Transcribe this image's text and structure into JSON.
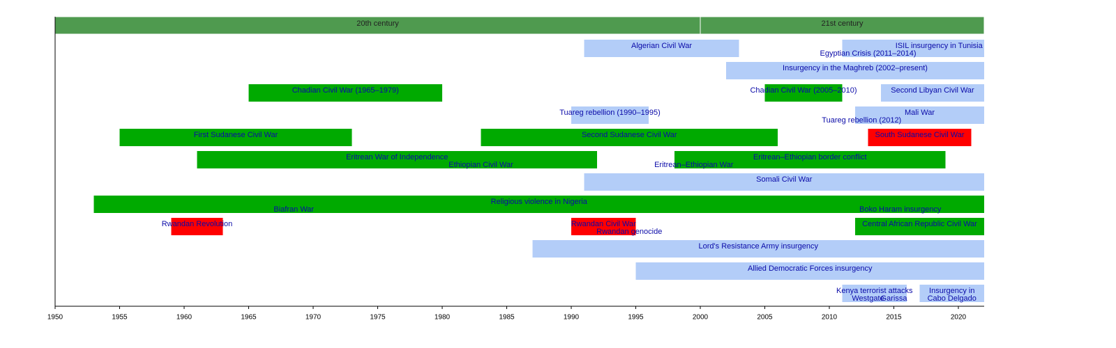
{
  "chart_data": {
    "type": "timeline",
    "xlim": [
      1950,
      2022
    ],
    "xticks": [
      1950,
      1955,
      1960,
      1965,
      1970,
      1975,
      1980,
      1985,
      1990,
      1995,
      2000,
      2005,
      2010,
      2015,
      2020
    ],
    "eras": [
      {
        "label": "20th century",
        "start": 1950,
        "end": 2000,
        "color": "#4f9a4f"
      },
      {
        "label": "21st century",
        "start": 2000,
        "end": 2022,
        "color": "#4f9a4f"
      }
    ],
    "bars": [
      {
        "label": "Algerian Civil War",
        "start": 1991,
        "end": 2003,
        "row": 0,
        "line": 0,
        "color": "#b3cdf8"
      },
      {
        "label": "Egyptian Crisis (2011–2014)",
        "start": 2011,
        "end": 2015,
        "row": 0,
        "line": 1,
        "color": "#b3cdf8"
      },
      {
        "label": "ISIL insurgency in Tunisia",
        "start": 2015,
        "end": 2022,
        "row": 0,
        "line": 0,
        "color": "#b3cdf8"
      },
      {
        "label": "Insurgency in the Maghreb (2002–present)",
        "start": 2002,
        "end": 2022,
        "row": 1,
        "line": 0,
        "color": "#b3cdf8"
      },
      {
        "label": "Chadian Civil War (1965–1979)",
        "start": 1965,
        "end": 1980,
        "row": 2,
        "line": 0,
        "color": "#00aa00"
      },
      {
        "label": "Chadian Civil War (2005–2010)",
        "start": 2005,
        "end": 2011,
        "row": 2,
        "line": 0,
        "color": "#00aa00"
      },
      {
        "label": "Second Libyan Civil War",
        "start": 2014,
        "end": 2022,
        "row": 2,
        "line": 0,
        "color": "#b3cdf8"
      },
      {
        "label": "Tuareg rebellion (1990–1995)",
        "start": 1990,
        "end": 1996,
        "row": 3,
        "line": 0,
        "color": "#b3cdf8"
      },
      {
        "label": "Mali War",
        "start": 2012,
        "end": 2022,
        "row": 3,
        "line": 0,
        "color": "#b3cdf8"
      },
      {
        "label": "Tuareg rebellion (2012)",
        "start": 2012,
        "end": 2013,
        "row": 3,
        "line": 1,
        "color": "#b3cdf8"
      },
      {
        "label": "First Sudanese Civil War",
        "start": 1955,
        "end": 1973,
        "row": 4,
        "line": 0,
        "color": "#00aa00"
      },
      {
        "label": "Second Sudanese Civil War",
        "start": 1983,
        "end": 2006,
        "row": 4,
        "line": 0,
        "color": "#00aa00"
      },
      {
        "label": "South Sudanese Civil War",
        "start": 2013,
        "end": 2021,
        "row": 4,
        "line": 0,
        "color": "#ff0000"
      },
      {
        "label": "Eritrean War of Independence",
        "start": 1961,
        "end": 1992,
        "row": 5,
        "line": 0,
        "color": "#00aa00"
      },
      {
        "label": "Ethiopian Civil War",
        "start": 1974,
        "end": 1992,
        "row": 5,
        "line": 1,
        "color": "#00aa00"
      },
      {
        "label": "Eritrean–Ethiopian border conflict",
        "start": 1998,
        "end": 2019,
        "row": 5,
        "line": 0,
        "color": "#00aa00"
      },
      {
        "label": "Eritrean–Ethiopian War",
        "start": 1998,
        "end": 2001,
        "row": 5,
        "line": 1,
        "color": "#00aa00"
      },
      {
        "label": "Somali Civil War",
        "start": 1991,
        "end": 2022,
        "row": 6,
        "line": 0,
        "color": "#b3cdf8"
      },
      {
        "label": "Religious violence in Nigeria",
        "start": 1953,
        "end": 2022,
        "row": 7,
        "line": 0,
        "color": "#00aa00"
      },
      {
        "label": "Biafran War",
        "start": 1967,
        "end": 1970,
        "row": 7,
        "line": 1,
        "color": "#00aa00"
      },
      {
        "label": "Boko Haram insurgency",
        "start": 2009,
        "end": 2022,
        "row": 7,
        "line": 1,
        "color": "#00aa00"
      },
      {
        "label": "Rwandan Revolution",
        "start": 1959,
        "end": 1963,
        "row": 8,
        "line": 0,
        "color": "#ff0000"
      },
      {
        "label": "Rwandan Civil War",
        "start": 1990,
        "end": 1995,
        "row": 8,
        "line": 0,
        "color": "#ff0000"
      },
      {
        "label": "Rwandan genocide",
        "start": 1994,
        "end": 1995,
        "row": 8,
        "line": 1,
        "color": "#ff0000"
      },
      {
        "label": "Central African Republic Civil War",
        "start": 2012,
        "end": 2022,
        "row": 8,
        "line": 0,
        "color": "#00aa00"
      },
      {
        "label": "Lord's Resistance Army insurgency",
        "start": 1987,
        "end": 2022,
        "row": 9,
        "line": 0,
        "color": "#b3cdf8"
      },
      {
        "label": "Allied Democratic Forces insurgency",
        "start": 1995,
        "end": 2022,
        "row": 10,
        "line": 0,
        "color": "#b3cdf8"
      },
      {
        "label": "Kenya terrorist attacks",
        "start": 2011,
        "end": 2016,
        "row": 11,
        "line": 0,
        "color": "#b3cdf8"
      },
      {
        "label": "Westgate",
        "start": 2013,
        "end": 2013,
        "row": 11,
        "line": 1,
        "color": "#b3cdf8"
      },
      {
        "label": "Garissa",
        "start": 2015,
        "end": 2015,
        "row": 11,
        "line": 1,
        "color": "#b3cdf8"
      },
      {
        "label": [
          "Insurgency in",
          "Cabo Delgado"
        ],
        "start": 2017,
        "end": 2022,
        "row": 11,
        "line": 0,
        "color": "#b3cdf8"
      }
    ]
  }
}
